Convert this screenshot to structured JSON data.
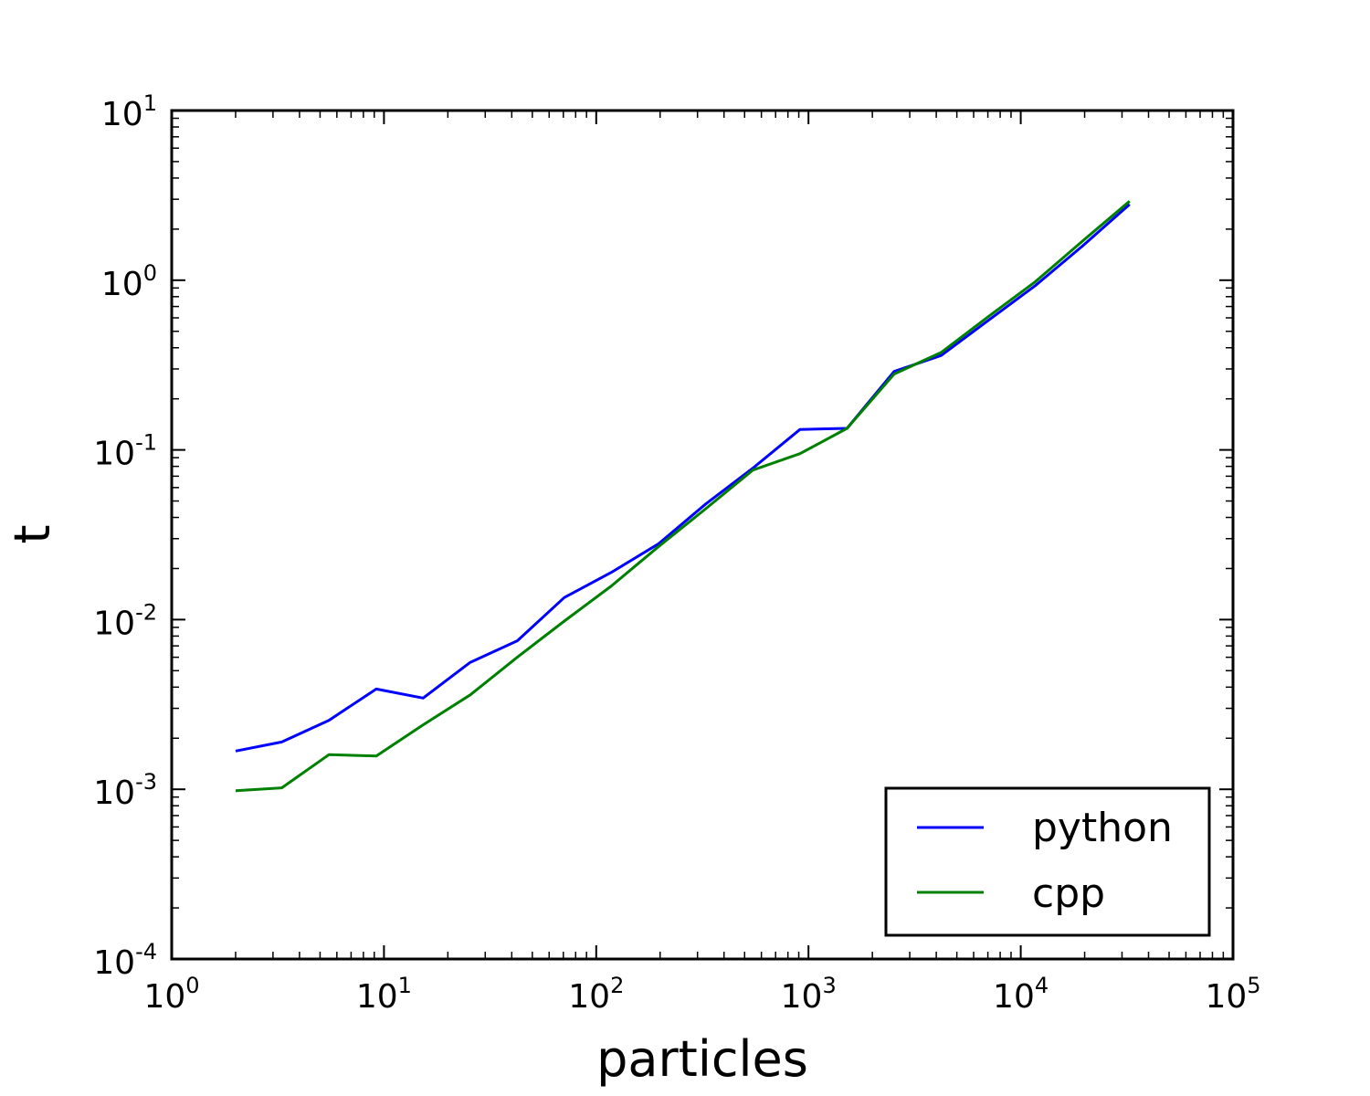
{
  "chart_data": {
    "type": "line",
    "title": "",
    "xlabel": "particles",
    "ylabel": "t",
    "xscale": "log",
    "yscale": "log",
    "xlim": [
      1,
      100000
    ],
    "ylim": [
      0.0001,
      10
    ],
    "x_ticks": [
      {
        "base": "10",
        "exp": "0",
        "value": 1
      },
      {
        "base": "10",
        "exp": "1",
        "value": 10
      },
      {
        "base": "10",
        "exp": "2",
        "value": 100
      },
      {
        "base": "10",
        "exp": "3",
        "value": 1000
      },
      {
        "base": "10",
        "exp": "4",
        "value": 10000
      },
      {
        "base": "10",
        "exp": "5",
        "value": 100000
      }
    ],
    "y_ticks": [
      {
        "base": "10",
        "exp": "-4",
        "value": 0.0001
      },
      {
        "base": "10",
        "exp": "-3",
        "value": 0.001
      },
      {
        "base": "10",
        "exp": "-2",
        "value": 0.01
      },
      {
        "base": "10",
        "exp": "-1",
        "value": 0.1
      },
      {
        "base": "10",
        "exp": "0",
        "value": 1
      },
      {
        "base": "10",
        "exp": "1",
        "value": 10
      }
    ],
    "x": [
      2,
      3.3,
      5.5,
      9.2,
      15.3,
      25.5,
      42.5,
      70.8,
      118,
      197,
      328,
      547,
      912,
      1519,
      2532,
      4220,
      7034,
      11723,
      19538,
      32564
    ],
    "series": [
      {
        "name": "python",
        "color": "#0000ff",
        "values": [
          0.00168,
          0.0019,
          0.00255,
          0.0039,
          0.00345,
          0.0056,
          0.0075,
          0.0135,
          0.019,
          0.028,
          0.048,
          0.078,
          0.132,
          0.134,
          0.29,
          0.36,
          0.58,
          0.93,
          1.59,
          2.8
        ]
      },
      {
        "name": "cpp",
        "color": "#008000",
        "values": [
          0.00098,
          0.00102,
          0.0016,
          0.00157,
          0.0024,
          0.0036,
          0.006,
          0.0098,
          0.0158,
          0.027,
          0.045,
          0.076,
          0.095,
          0.134,
          0.28,
          0.375,
          0.61,
          0.98,
          1.7,
          2.92
        ]
      }
    ],
    "grid": false,
    "legend_position": "lower-right"
  }
}
